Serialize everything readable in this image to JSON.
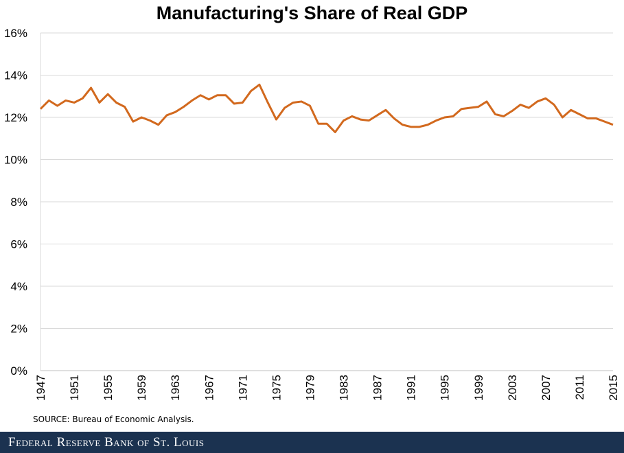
{
  "chart_data": {
    "type": "line",
    "title": "Manufacturing's Share of Real GDP",
    "xlabel": "",
    "ylabel": "",
    "ylim": [
      0,
      16
    ],
    "yticks": [
      "0%",
      "2%",
      "4%",
      "6%",
      "8%",
      "10%",
      "12%",
      "14%",
      "16%"
    ],
    "xlim": [
      1947,
      2015
    ],
    "xticks": [
      "1947",
      "1951",
      "1955",
      "1959",
      "1963",
      "1967",
      "1971",
      "1975",
      "1979",
      "1983",
      "1987",
      "1991",
      "1995",
      "1999",
      "2003",
      "2007",
      "2011",
      "2015"
    ],
    "grid": true,
    "color": "#d2691e",
    "x_start": 1947,
    "values": [
      12.4,
      12.8,
      12.55,
      12.8,
      12.7,
      12.9,
      13.4,
      12.7,
      13.1,
      12.7,
      12.5,
      11.8,
      12.0,
      11.85,
      11.65,
      12.1,
      12.25,
      12.5,
      12.8,
      13.05,
      12.85,
      13.05,
      13.05,
      12.65,
      12.7,
      13.25,
      13.55,
      12.7,
      11.9,
      12.45,
      12.7,
      12.75,
      12.55,
      11.7,
      11.7,
      11.3,
      11.85,
      12.05,
      11.9,
      11.85,
      12.1,
      12.35,
      11.95,
      11.65,
      11.55,
      11.55,
      11.65,
      11.85,
      12.0,
      12.05,
      12.4,
      12.45,
      12.5,
      12.75,
      12.15,
      12.05,
      12.3,
      12.6,
      12.45,
      12.75,
      12.9,
      12.6,
      12.0,
      12.35,
      12.15,
      11.95,
      11.95,
      11.8,
      11.65
    ]
  },
  "source": "SOURCE: Bureau of Economic Analysis.",
  "footer": "Federal Reserve Bank of St. Louis"
}
